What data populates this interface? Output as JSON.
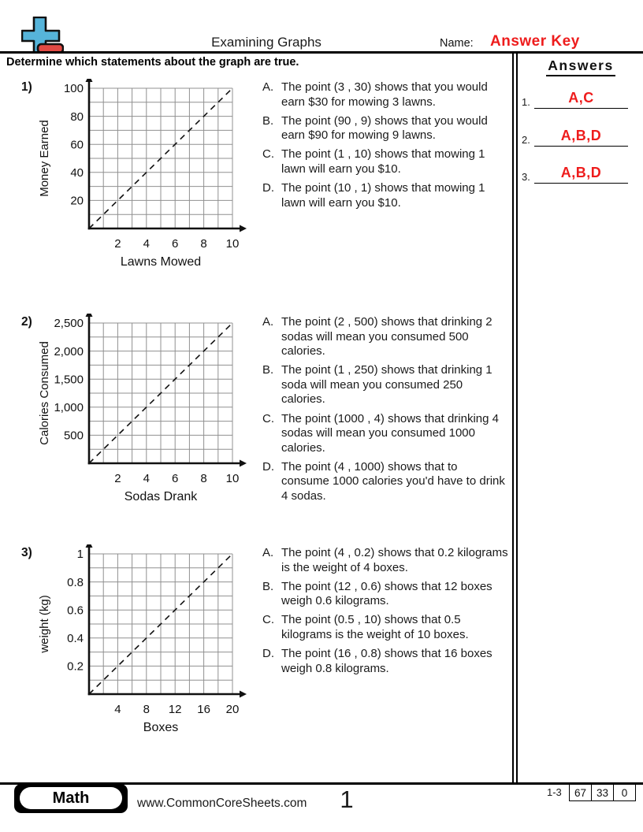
{
  "header": {
    "title": "Examining Graphs",
    "name_label": "Name:",
    "name_value": "Answer Key",
    "instruction": "Determine which statements about the graph are true."
  },
  "answers_panel": {
    "title": "Answers",
    "items": [
      {
        "num": "1.",
        "value": "A,C"
      },
      {
        "num": "2.",
        "value": "A,B,D"
      },
      {
        "num": "3.",
        "value": "A,B,D"
      }
    ]
  },
  "problems": [
    {
      "num": "1)",
      "graph": {
        "type": "line",
        "title": "",
        "xlabel": "Lawns Mowed",
        "ylabel": "Money Earned",
        "xlim": [
          0,
          10
        ],
        "ylim": [
          0,
          100
        ],
        "xticks": [
          "2",
          "4",
          "6",
          "8",
          "10"
        ],
        "yticks": [
          "20",
          "40",
          "60",
          "80",
          "100"
        ],
        "grid_divisions": 10,
        "line_style": "dashed",
        "points": [
          [
            0,
            0
          ],
          [
            10,
            100
          ]
        ]
      },
      "statements": [
        {
          "letter": "A.",
          "text": "The point (3 , 30) shows that you would earn $30 for mowing 3 lawns."
        },
        {
          "letter": "B.",
          "text": "The point (90 , 9) shows that you would earn $90 for mowing 9 lawns."
        },
        {
          "letter": "C.",
          "text": "The point (1 , 10) shows that mowing 1 lawn will earn you $10."
        },
        {
          "letter": "D.",
          "text": "The point (10 , 1) shows that mowing 1 lawn will earn you $10."
        }
      ]
    },
    {
      "num": "2)",
      "graph": {
        "type": "line",
        "title": "",
        "xlabel": "Sodas Drank",
        "ylabel": "Calories Consumed",
        "xlim": [
          0,
          10
        ],
        "ylim": [
          0,
          2500
        ],
        "xticks": [
          "2",
          "4",
          "6",
          "8",
          "10"
        ],
        "yticks": [
          "500",
          "1,000",
          "1,500",
          "2,000",
          "2,500"
        ],
        "grid_divisions": 10,
        "line_style": "dashed",
        "points": [
          [
            0,
            0
          ],
          [
            10,
            2500
          ]
        ]
      },
      "statements": [
        {
          "letter": "A.",
          "text": "The point (2 , 500) shows that drinking 2 sodas will mean you consumed 500 calories."
        },
        {
          "letter": "B.",
          "text": "The point (1 , 250) shows that drinking 1 soda will mean you consumed 250 calories."
        },
        {
          "letter": "C.",
          "text": "The point (1000 , 4) shows that drinking 4 sodas will mean you consumed 1000 calories."
        },
        {
          "letter": "D.",
          "text": "The point (4 , 1000) shows that to consume 1000 calories you'd have to drink 4 sodas."
        }
      ]
    },
    {
      "num": "3)",
      "graph": {
        "type": "line",
        "title": "",
        "xlabel": "Boxes",
        "ylabel": "weight (kg)",
        "xlim": [
          0,
          20
        ],
        "ylim": [
          0,
          1
        ],
        "xticks": [
          "4",
          "8",
          "12",
          "16",
          "20"
        ],
        "yticks": [
          "0.2",
          "0.4",
          "0.6",
          "0.8",
          "1"
        ],
        "grid_divisions": 10,
        "line_style": "dashed",
        "points": [
          [
            0,
            0
          ],
          [
            20,
            1
          ]
        ]
      },
      "statements": [
        {
          "letter": "A.",
          "text": "The point (4 , 0.2) shows that 0.2 kilograms is the weight of 4 boxes."
        },
        {
          "letter": "B.",
          "text": "The point (12 , 0.6) shows that 12 boxes weigh 0.6 kilograms."
        },
        {
          "letter": "C.",
          "text": "The point (0.5 , 10) shows that 0.5 kilograms is the weight of 10 boxes."
        },
        {
          "letter": "D.",
          "text": "The point (16 , 0.8) shows that 16 boxes weigh 0.8 kilograms."
        }
      ]
    }
  ],
  "footer": {
    "subject": "Math",
    "website": "www.CommonCoreSheets.com",
    "page_number": "1",
    "problem_range": "1-3",
    "score_boxes": [
      "67",
      "33",
      "0"
    ]
  },
  "colors": {
    "answer_red": "#ee1c1c",
    "logo_blue": "#56b4da",
    "logo_red": "#e24a44",
    "grid_gray": "#909090",
    "axis_black": "#111111"
  }
}
